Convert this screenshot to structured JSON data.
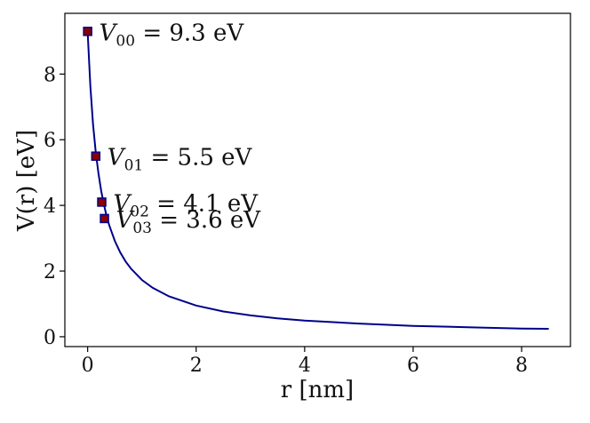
{
  "chart_data": {
    "type": "line",
    "title": "",
    "xlabel": "r [nm]",
    "ylabel": "V(r) [eV]",
    "xlim": [
      -0.42,
      8.9
    ],
    "ylim": [
      -0.3,
      9.85
    ],
    "x_ticks": [
      0,
      2,
      4,
      6,
      8
    ],
    "y_ticks": [
      0,
      2,
      4,
      6,
      8
    ],
    "x_tick_labels": [
      "0",
      "2",
      "4",
      "6",
      "8"
    ],
    "y_tick_labels": [
      "0",
      "2",
      "4",
      "6",
      "8"
    ],
    "grid": false,
    "series": [
      {
        "type": "line",
        "color": "#00008b",
        "x": [
          0.0,
          0.05,
          0.1,
          0.15,
          0.2,
          0.25,
          0.3,
          0.35,
          0.4,
          0.5,
          0.6,
          0.7,
          0.8,
          1.0,
          1.2,
          1.5,
          2.0,
          2.5,
          3.0,
          3.5,
          4.0,
          5.0,
          6.0,
          7.0,
          8.0,
          8.5
        ],
        "y": [
          9.3,
          7.63,
          6.47,
          5.61,
          4.96,
          4.44,
          4.02,
          3.67,
          3.38,
          2.92,
          2.57,
          2.29,
          2.07,
          1.73,
          1.49,
          1.23,
          0.95,
          0.77,
          0.65,
          0.56,
          0.49,
          0.4,
          0.33,
          0.29,
          0.25,
          0.24
        ]
      },
      {
        "type": "scatter",
        "marker": "square",
        "fill": "#8b0000",
        "edge": "#00008b",
        "points": [
          {
            "x": 0.0,
            "y": 9.3,
            "label_base": "V",
            "label_sub": "00",
            "label_rest": " = 9.3 eV"
          },
          {
            "x": 0.15,
            "y": 5.5,
            "label_base": "V",
            "label_sub": "01",
            "label_rest": " = 5.5 eV"
          },
          {
            "x": 0.26,
            "y": 4.1,
            "label_base": "V",
            "label_sub": "02",
            "label_rest": " = 4.1 eV"
          },
          {
            "x": 0.31,
            "y": 3.6,
            "label_base": "V",
            "label_sub": "03",
            "label_rest": " = 3.6 eV"
          }
        ]
      }
    ]
  }
}
